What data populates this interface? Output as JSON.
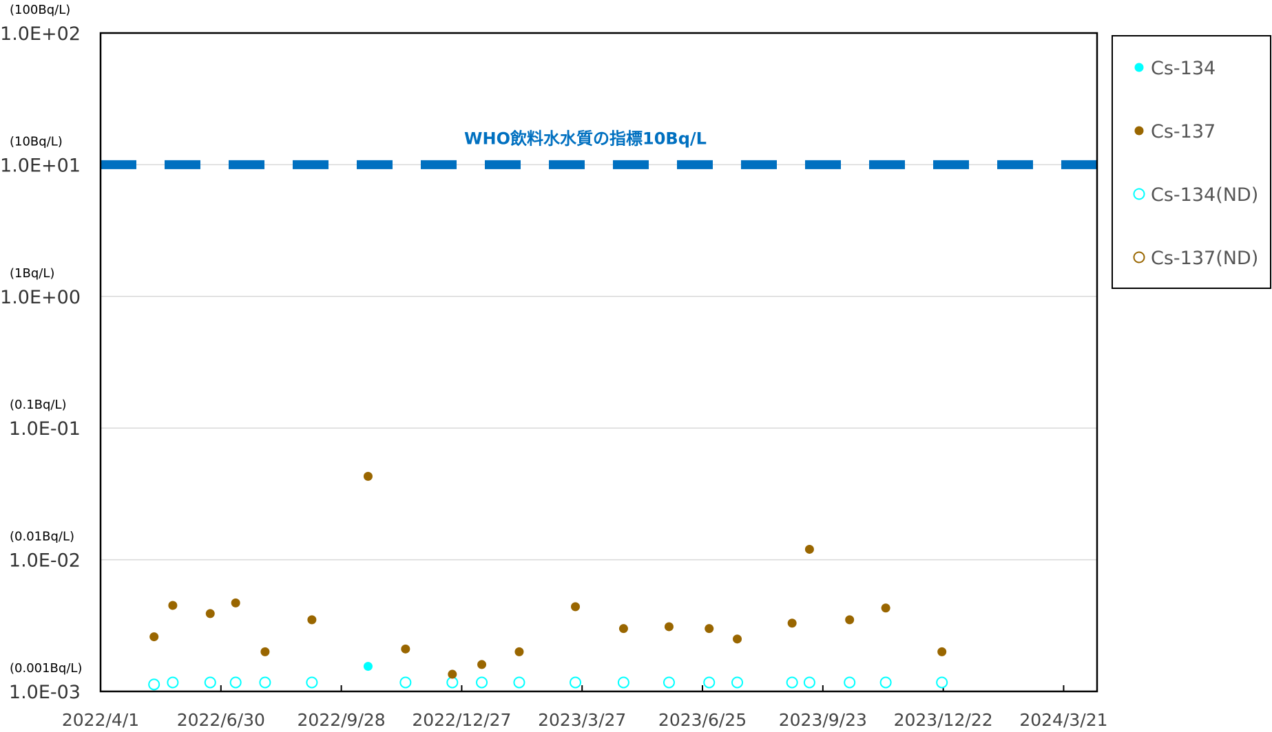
{
  "chart_data": {
    "type": "scatter",
    "title": "",
    "xlabel": "",
    "ylabel": "",
    "y_scale": "log",
    "ylim": [
      0.001,
      100
    ],
    "y_ticks": [
      {
        "value": 100,
        "label": "1.0E+02",
        "unit_label": "(100Bq/L)"
      },
      {
        "value": 10,
        "label": "1.0E+01",
        "unit_label": "(10Bq/L)"
      },
      {
        "value": 1,
        "label": "1.0E+00",
        "unit_label": "(1Bq/L)"
      },
      {
        "value": 0.1,
        "label": "1.0E-01",
        "unit_label": "(0.1Bq/L)"
      },
      {
        "value": 0.01,
        "label": "1.0E-02",
        "unit_label": "(0.01Bq/L)"
      },
      {
        "value": 0.001,
        "label": "1.0E-03",
        "unit_label": "(0.001Bq/L)"
      }
    ],
    "xlim": [
      "2022-04-01",
      "2024-04-15"
    ],
    "x_ticks": [
      {
        "value": "2022-04-01",
        "label": "2022/4/1"
      },
      {
        "value": "2022-06-30",
        "label": "2022/6/30"
      },
      {
        "value": "2022-09-28",
        "label": "2022/9/28"
      },
      {
        "value": "2022-12-27",
        "label": "2022/12/27"
      },
      {
        "value": "2023-03-27",
        "label": "2023/3/27"
      },
      {
        "value": "2023-06-25",
        "label": "2023/6/25"
      },
      {
        "value": "2023-09-23",
        "label": "2023/9/23"
      },
      {
        "value": "2023-12-22",
        "label": "2023/12/22"
      },
      {
        "value": "2024-03-21",
        "label": "2024/3/21"
      }
    ],
    "grid": true,
    "legend_position": "right",
    "reference_line": {
      "value": 10,
      "label": "WHO飲料水水質の指標10Bq/L",
      "color": "#0070C0"
    },
    "series": [
      {
        "name": "Cs-134",
        "marker": "filled",
        "color": "#00FFFF",
        "points": [
          {
            "x": "2022-10-18",
            "y": 0.00155
          }
        ]
      },
      {
        "name": "Cs-137",
        "marker": "filled",
        "color": "#996600",
        "points": [
          {
            "x": "2022-05-11",
            "y": 0.0026
          },
          {
            "x": "2022-05-25",
            "y": 0.0045
          },
          {
            "x": "2022-06-22",
            "y": 0.0039
          },
          {
            "x": "2022-07-11",
            "y": 0.0047
          },
          {
            "x": "2022-08-02",
            "y": 0.002
          },
          {
            "x": "2022-09-06",
            "y": 0.0035
          },
          {
            "x": "2022-10-18",
            "y": 0.043
          },
          {
            "x": "2022-11-15",
            "y": 0.0021
          },
          {
            "x": "2022-12-20",
            "y": 0.00135
          },
          {
            "x": "2023-01-11",
            "y": 0.0016
          },
          {
            "x": "2023-02-08",
            "y": 0.002
          },
          {
            "x": "2023-03-22",
            "y": 0.0044
          },
          {
            "x": "2023-04-27",
            "y": 0.003
          },
          {
            "x": "2023-05-31",
            "y": 0.0031
          },
          {
            "x": "2023-06-30",
            "y": 0.003
          },
          {
            "x": "2023-07-21",
            "y": 0.0025
          },
          {
            "x": "2023-08-31",
            "y": 0.0033
          },
          {
            "x": "2023-09-13",
            "y": 0.012
          },
          {
            "x": "2023-10-13",
            "y": 0.0035
          },
          {
            "x": "2023-11-09",
            "y": 0.0043
          },
          {
            "x": "2023-12-21",
            "y": 0.002
          }
        ]
      },
      {
        "name": "Cs-134(ND)",
        "marker": "hollow",
        "color": "#00FFFF",
        "points": [
          {
            "x": "2022-05-11",
            "y": 0.00113
          },
          {
            "x": "2022-05-25",
            "y": 0.00117
          },
          {
            "x": "2022-06-22",
            "y": 0.00117
          },
          {
            "x": "2022-07-11",
            "y": 0.00117
          },
          {
            "x": "2022-08-02",
            "y": 0.00117
          },
          {
            "x": "2022-09-06",
            "y": 0.00117
          },
          {
            "x": "2022-11-15",
            "y": 0.00117
          },
          {
            "x": "2022-12-20",
            "y": 0.00117
          },
          {
            "x": "2023-01-11",
            "y": 0.00117
          },
          {
            "x": "2023-02-08",
            "y": 0.00117
          },
          {
            "x": "2023-03-22",
            "y": 0.00117
          },
          {
            "x": "2023-04-27",
            "y": 0.00117
          },
          {
            "x": "2023-05-31",
            "y": 0.00117
          },
          {
            "x": "2023-06-30",
            "y": 0.00117
          },
          {
            "x": "2023-07-21",
            "y": 0.00117
          },
          {
            "x": "2023-08-31",
            "y": 0.00117
          },
          {
            "x": "2023-09-13",
            "y": 0.00117
          },
          {
            "x": "2023-10-13",
            "y": 0.00117
          },
          {
            "x": "2023-11-09",
            "y": 0.00117
          },
          {
            "x": "2023-12-21",
            "y": 0.00117
          }
        ]
      },
      {
        "name": "Cs-137(ND)",
        "marker": "hollow",
        "color": "#996600",
        "points": []
      }
    ]
  }
}
